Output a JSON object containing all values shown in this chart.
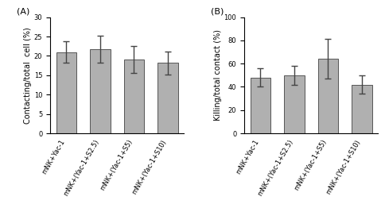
{
  "panel_A": {
    "label": "(A)",
    "ylabel": "Contacting/total  cell (%)",
    "ylim": [
      0,
      30
    ],
    "yticks": [
      0,
      5,
      10,
      15,
      20,
      25,
      30
    ],
    "categories": [
      "mNK+Yac-1",
      "mNK+(Yac-1+S2.5)",
      "mNK+(Yac-1+S5)",
      "mNK+(Yac-1+S10)"
    ],
    "values": [
      21.0,
      21.8,
      19.0,
      18.2
    ],
    "errors": [
      2.8,
      3.5,
      3.5,
      3.0
    ],
    "bar_color": "#b0b0b0",
    "bar_edgecolor": "#555555"
  },
  "panel_B": {
    "label": "(B)",
    "ylabel": "Killing/total contact (%)",
    "ylim": [
      0,
      100
    ],
    "yticks": [
      0,
      20,
      40,
      60,
      80,
      100
    ],
    "categories": [
      "mNK+Yac-1",
      "mNK+(Yac-1+S2.5)",
      "mNK+(Yac-1+S5)",
      "mNK+(Yac-1+S10)"
    ],
    "values": [
      48.0,
      50.0,
      64.0,
      42.0
    ],
    "errors": [
      8.0,
      8.0,
      17.0,
      8.0
    ],
    "bar_color": "#b0b0b0",
    "bar_edgecolor": "#555555"
  },
  "background_color": "#ffffff",
  "tick_fontsize": 6,
  "label_fontsize": 7,
  "panel_label_fontsize": 8,
  "xtick_rotation": 60
}
